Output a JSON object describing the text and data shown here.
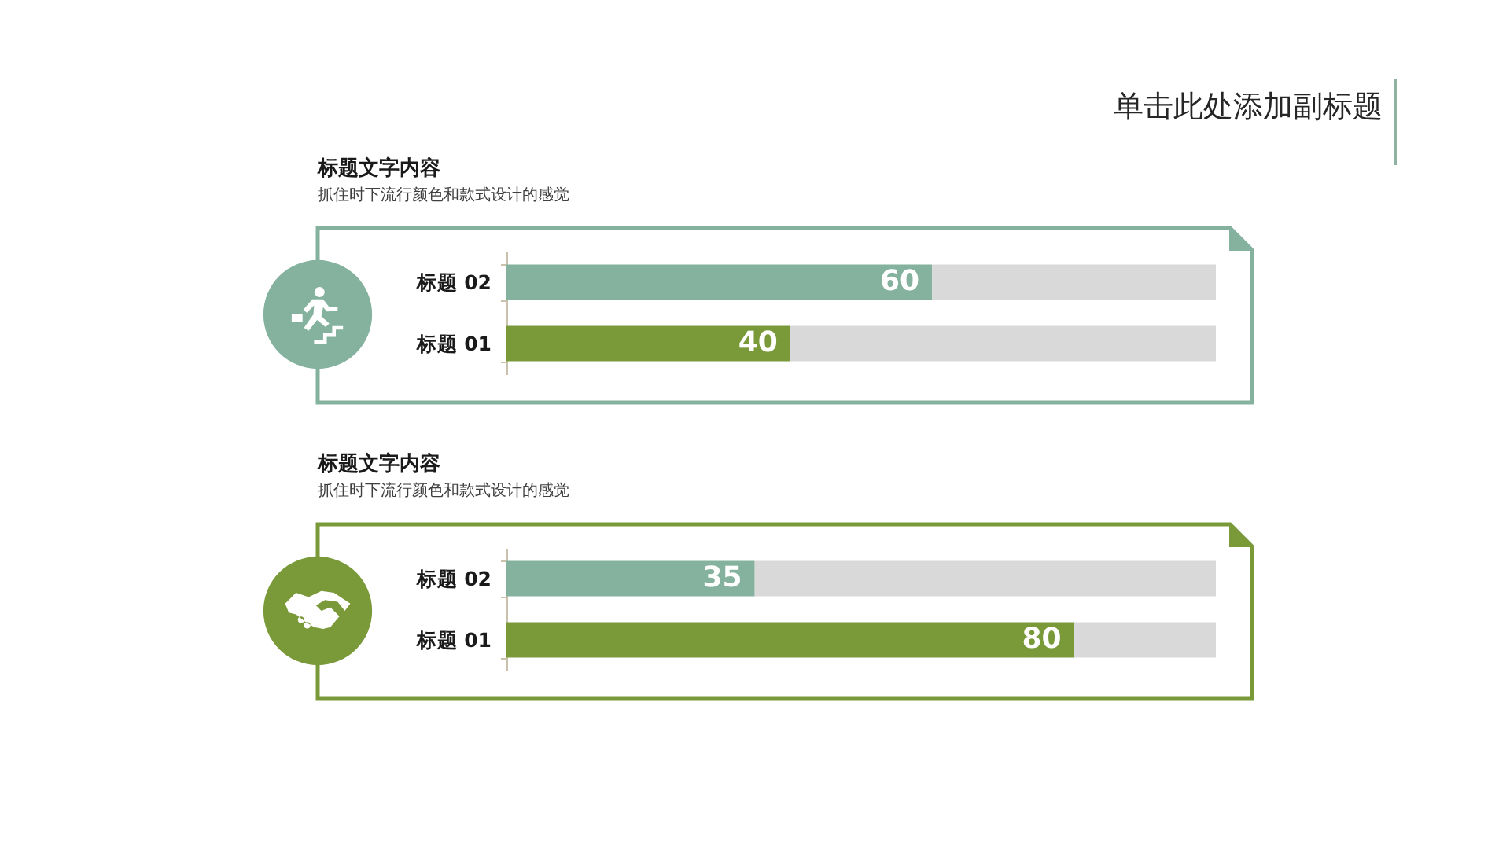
{
  "chart_data": [
    {
      "type": "bar",
      "orientation": "horizontal",
      "stacked": true,
      "title": "标题文字内容",
      "subtitle": "抓住时下流行颜色和款式设计的感觉",
      "annotations": [
        "单击此处添加副标题"
      ],
      "categories": [
        "标题 02",
        "标题 01"
      ],
      "series": [
        {
          "colors": [
            "#84b29e",
            "#7a9a3a"
          ],
          "values": [
            60,
            40
          ],
          "value_labels": [
            "60",
            "40"
          ]
        },
        {
          "color": "#d9d9d9",
          "values": [
            40,
            60
          ]
        }
      ],
      "xlim": [
        0,
        100
      ],
      "tick_labels": "y"
    },
    {
      "type": "bar",
      "orientation": "horizontal",
      "stacked": true,
      "title": "标题文字内容",
      "subtitle": "抓住时下流行颜色和款式设计的感觉",
      "categories": [
        "标题 02",
        "标题 01"
      ],
      "series": [
        {
          "colors": [
            "#84b29e",
            "#7a9a3a"
          ],
          "values": [
            35,
            80
          ],
          "value_labels": [
            "35",
            "80"
          ]
        },
        {
          "color": "#d9d9d9",
          "values": [
            65,
            20
          ]
        }
      ],
      "xlim": [
        0,
        100
      ],
      "tick_labels": "y"
    }
  ]
}
